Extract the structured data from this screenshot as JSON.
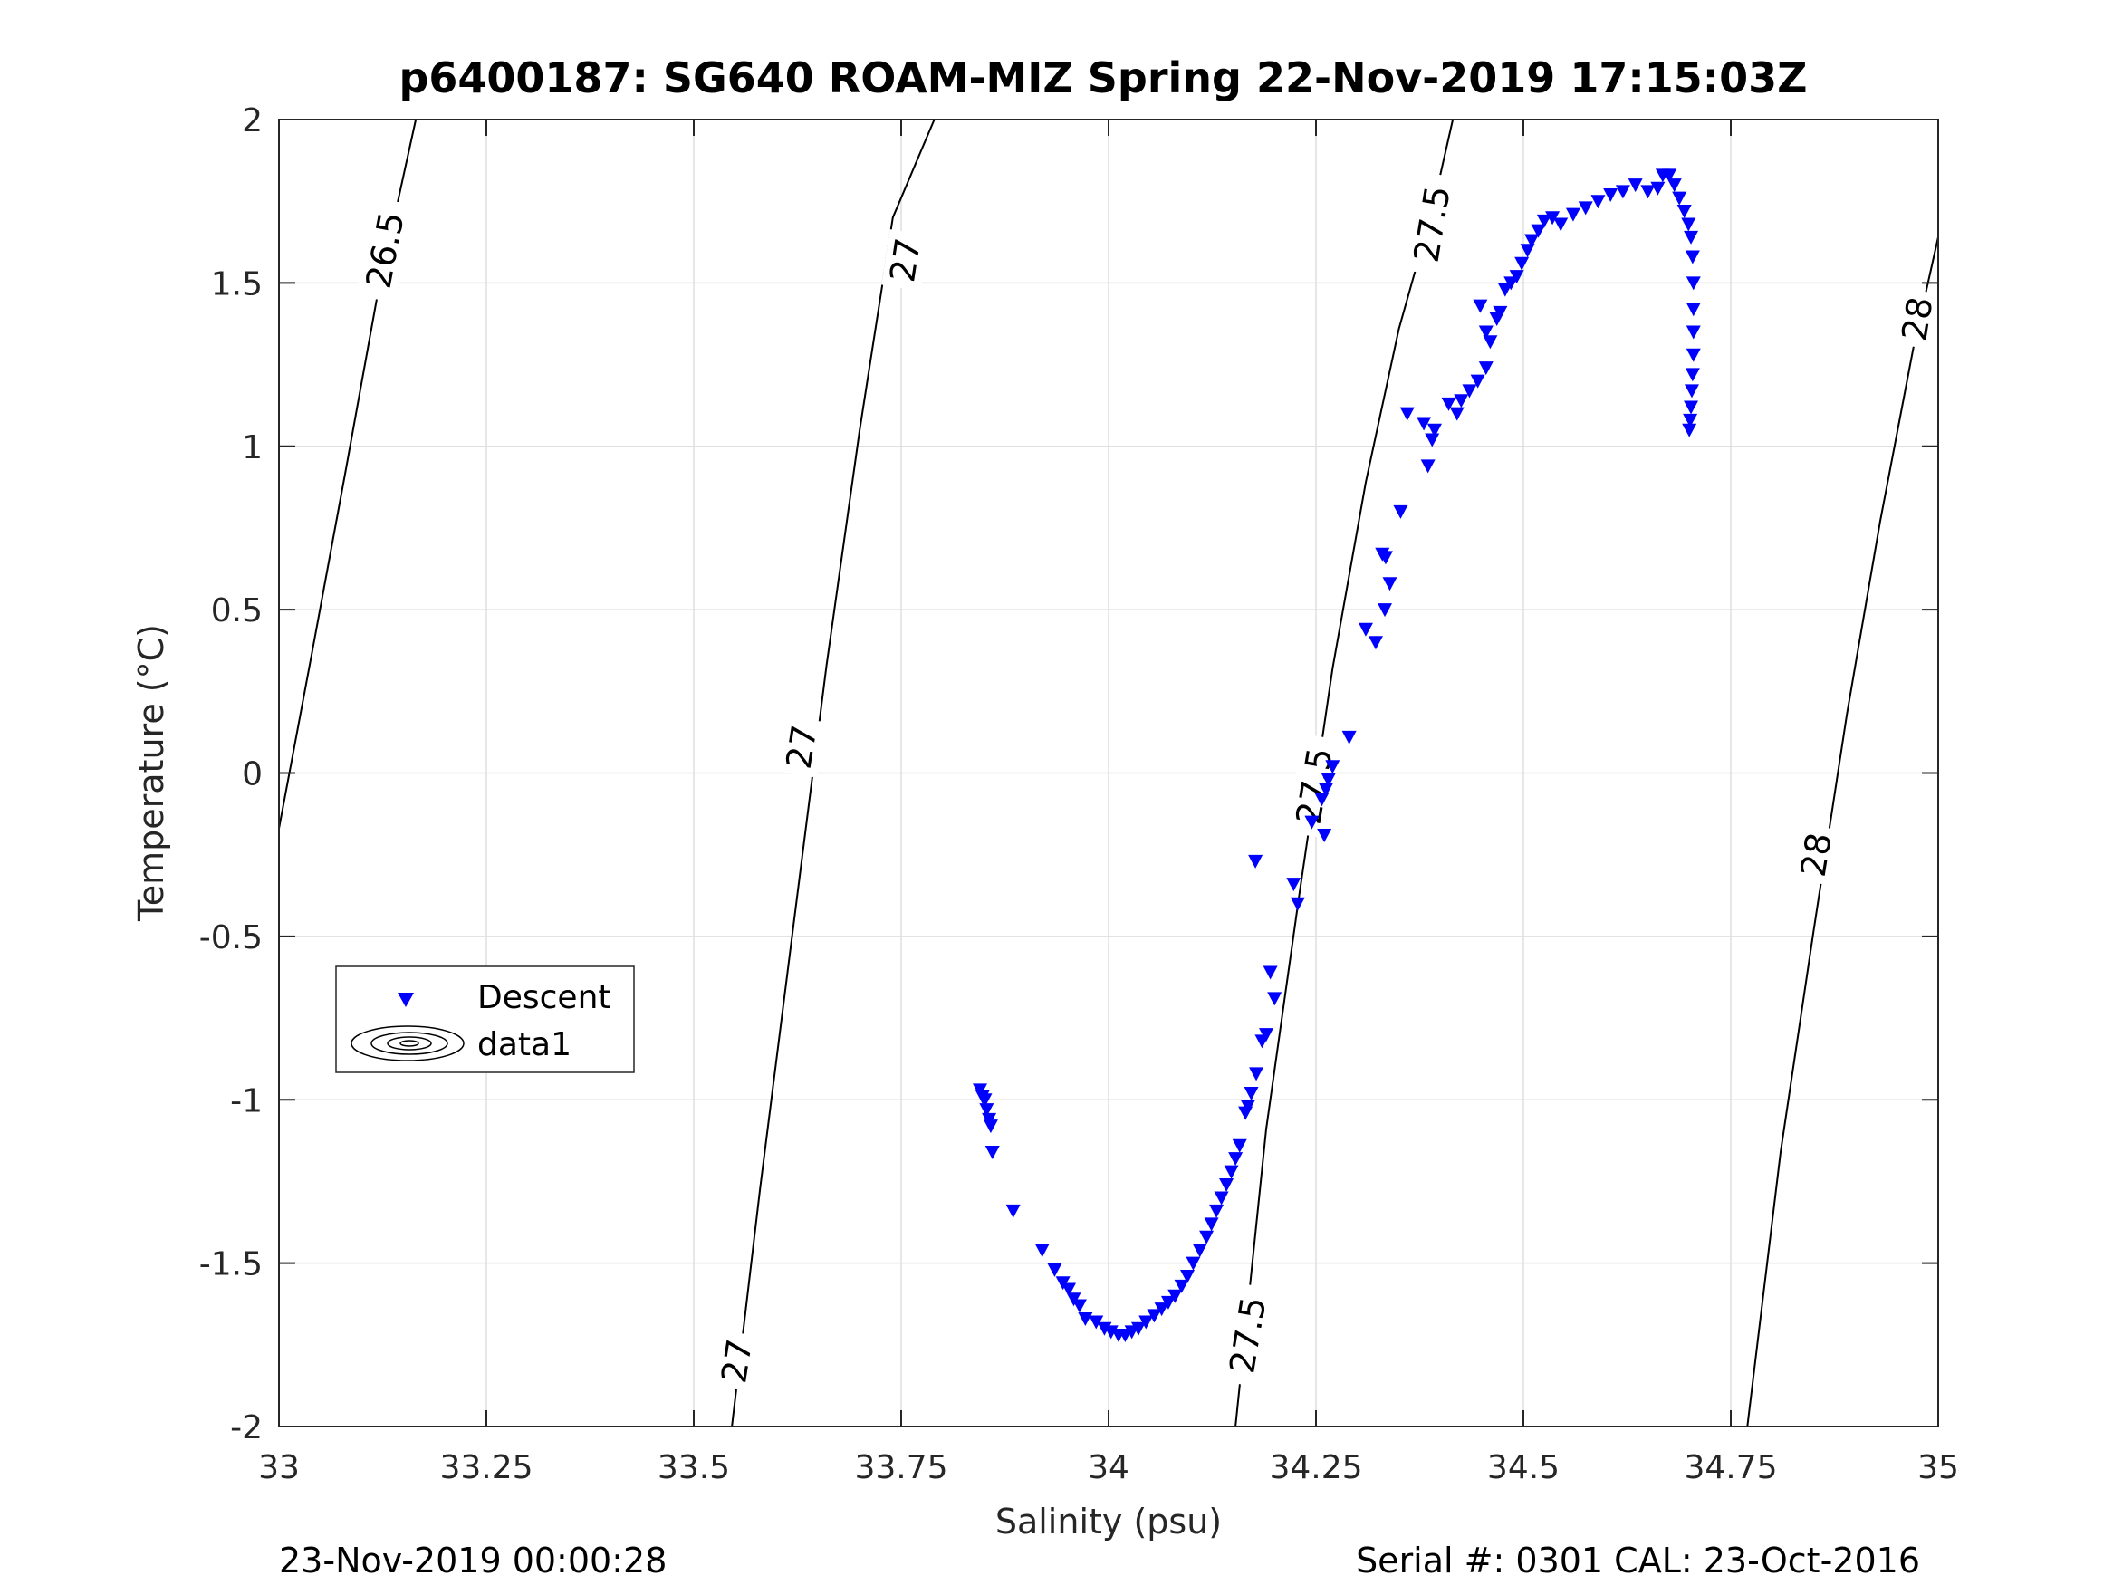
{
  "chart_data": {
    "type": "scatter",
    "title": "p6400187: SG640 ROAM-MIZ Spring 22-Nov-2019 17:15:03Z",
    "xlabel": "Salinity (psu)",
    "ylabel": "Temperature (°C)",
    "xlim": [
      33,
      35
    ],
    "ylim": [
      -2,
      2
    ],
    "xticks": [
      33,
      33.25,
      33.5,
      33.75,
      34,
      34.25,
      34.5,
      34.75,
      35
    ],
    "xtick_labels": [
      "33",
      "33.25",
      "33.5",
      "33.75",
      "34",
      "34.25",
      "34.5",
      "34.75",
      "35"
    ],
    "yticks": [
      -2,
      -1.5,
      -1,
      -0.5,
      0,
      0.5,
      1,
      1.5,
      2
    ],
    "ytick_labels": [
      "-2",
      "-1.5",
      "-1",
      "-0.5",
      "0",
      "0.5",
      "1",
      "1.5",
      "2"
    ],
    "grid": true,
    "legend": {
      "position": "lower-left",
      "entries": [
        {
          "label": "Descent",
          "marker": "triangle-down",
          "color": "#0000ff"
        },
        {
          "label": "data1",
          "marker": "contour",
          "color": "#000000"
        }
      ]
    },
    "series": [
      {
        "name": "Descent",
        "marker": "triangle-down",
        "color": "#0000ff",
        "points": [
          [
            33.845,
            -0.97
          ],
          [
            33.848,
            -0.99
          ],
          [
            33.851,
            -1.0
          ],
          [
            33.853,
            -1.03
          ],
          [
            33.856,
            -1.06
          ],
          [
            33.858,
            -1.08
          ],
          [
            33.86,
            -1.16
          ],
          [
            33.885,
            -1.34
          ],
          [
            33.92,
            -1.46
          ],
          [
            33.935,
            -1.52
          ],
          [
            33.945,
            -1.56
          ],
          [
            33.952,
            -1.58
          ],
          [
            33.958,
            -1.61
          ],
          [
            33.965,
            -1.63
          ],
          [
            33.972,
            -1.67
          ],
          [
            33.985,
            -1.68
          ],
          [
            33.995,
            -1.7
          ],
          [
            34.003,
            -1.71
          ],
          [
            34.012,
            -1.72
          ],
          [
            34.02,
            -1.72
          ],
          [
            34.028,
            -1.71
          ],
          [
            34.036,
            -1.7
          ],
          [
            34.045,
            -1.68
          ],
          [
            34.055,
            -1.66
          ],
          [
            34.064,
            -1.64
          ],
          [
            34.072,
            -1.62
          ],
          [
            34.08,
            -1.6
          ],
          [
            34.088,
            -1.57
          ],
          [
            34.095,
            -1.54
          ],
          [
            34.102,
            -1.5
          ],
          [
            34.11,
            -1.46
          ],
          [
            34.118,
            -1.42
          ],
          [
            34.124,
            -1.38
          ],
          [
            34.13,
            -1.34
          ],
          [
            34.136,
            -1.3
          ],
          [
            34.142,
            -1.26
          ],
          [
            34.148,
            -1.22
          ],
          [
            34.153,
            -1.18
          ],
          [
            34.158,
            -1.14
          ],
          [
            34.165,
            -1.04
          ],
          [
            34.168,
            -1.02
          ],
          [
            34.172,
            -0.98
          ],
          [
            34.178,
            -0.92
          ],
          [
            34.185,
            -0.82
          ],
          [
            34.19,
            -0.8
          ],
          [
            34.2,
            -0.69
          ],
          [
            34.195,
            -0.61
          ],
          [
            34.177,
            -0.27
          ],
          [
            34.223,
            -0.34
          ],
          [
            34.228,
            -0.4
          ],
          [
            34.245,
            -0.15
          ],
          [
            34.257,
            -0.08
          ],
          [
            34.262,
            -0.05
          ],
          [
            34.265,
            -0.02
          ],
          [
            34.27,
            0.02
          ],
          [
            34.26,
            -0.19
          ],
          [
            34.29,
            0.11
          ],
          [
            34.31,
            0.44
          ],
          [
            34.322,
            0.4
          ],
          [
            34.33,
            0.67
          ],
          [
            34.333,
            0.5
          ],
          [
            34.339,
            0.58
          ],
          [
            34.334,
            0.66
          ],
          [
            34.352,
            0.8
          ],
          [
            34.36,
            1.1
          ],
          [
            34.38,
            1.07
          ],
          [
            34.385,
            0.94
          ],
          [
            34.39,
            1.02
          ],
          [
            34.393,
            1.05
          ],
          [
            34.41,
            1.13
          ],
          [
            34.42,
            1.1
          ],
          [
            34.425,
            1.14
          ],
          [
            34.435,
            1.17
          ],
          [
            34.445,
            1.2
          ],
          [
            34.455,
            1.24
          ],
          [
            34.448,
            1.43
          ],
          [
            34.455,
            1.35
          ],
          [
            34.46,
            1.32
          ],
          [
            34.468,
            1.39
          ],
          [
            34.472,
            1.41
          ],
          [
            34.478,
            1.48
          ],
          [
            34.485,
            1.5
          ],
          [
            34.492,
            1.52
          ],
          [
            34.498,
            1.56
          ],
          [
            34.505,
            1.6
          ],
          [
            34.51,
            1.63
          ],
          [
            34.518,
            1.66
          ],
          [
            34.525,
            1.69
          ],
          [
            34.535,
            1.7
          ],
          [
            34.545,
            1.68
          ],
          [
            34.56,
            1.71
          ],
          [
            34.575,
            1.73
          ],
          [
            34.59,
            1.75
          ],
          [
            34.605,
            1.77
          ],
          [
            34.62,
            1.78
          ],
          [
            34.635,
            1.8
          ],
          [
            34.65,
            1.78
          ],
          [
            34.662,
            1.79
          ],
          [
            34.668,
            1.83
          ],
          [
            34.676,
            1.83
          ],
          [
            34.682,
            1.8
          ],
          [
            34.688,
            1.76
          ],
          [
            34.694,
            1.72
          ],
          [
            34.699,
            1.68
          ],
          [
            34.702,
            1.64
          ],
          [
            34.704,
            1.58
          ],
          [
            34.705,
            1.5
          ],
          [
            34.705,
            1.42
          ],
          [
            34.705,
            1.35
          ],
          [
            34.705,
            1.28
          ],
          [
            34.704,
            1.22
          ],
          [
            34.703,
            1.17
          ],
          [
            34.702,
            1.12
          ],
          [
            34.701,
            1.08
          ],
          [
            34.7,
            1.05
          ]
        ]
      }
    ],
    "contours": [
      {
        "label": "26.5",
        "labels_at": [
          [
            33.128,
            1.6
          ]
        ],
        "points": [
          [
            33.0,
            -0.17
          ],
          [
            33.04,
            0.37
          ],
          [
            33.08,
            0.92
          ],
          [
            33.12,
            1.48
          ],
          [
            33.165,
            2.0
          ]
        ]
      },
      {
        "label": "27",
        "labels_at": [
          [
            33.552,
            -1.8
          ],
          [
            33.63,
            0.08
          ],
          [
            33.755,
            1.57
          ]
        ],
        "points": [
          [
            33.546,
            -2.0
          ],
          [
            33.58,
            -1.27
          ],
          [
            33.62,
            -0.47
          ],
          [
            33.66,
            0.33
          ],
          [
            33.7,
            1.05
          ],
          [
            33.74,
            1.7
          ],
          [
            33.79,
            2.0
          ]
        ]
      },
      {
        "label": "27.5",
        "labels_at": [
          [
            34.168,
            -1.72
          ],
          [
            34.248,
            -0.04
          ],
          [
            34.39,
            1.68
          ]
        ],
        "points": [
          [
            34.153,
            -2.0
          ],
          [
            34.19,
            -1.09
          ],
          [
            34.23,
            -0.37
          ],
          [
            34.27,
            0.32
          ],
          [
            34.31,
            0.89
          ],
          [
            34.35,
            1.36
          ],
          [
            34.39,
            1.72
          ],
          [
            34.415,
            2.0
          ]
        ]
      },
      {
        "label": "28",
        "labels_at": [
          [
            34.853,
            -0.25
          ],
          [
            34.975,
            1.39
          ]
        ],
        "points": [
          [
            34.77,
            -2.0
          ],
          [
            34.81,
            -1.16
          ],
          [
            34.85,
            -0.48
          ],
          [
            34.89,
            0.18
          ],
          [
            34.93,
            0.77
          ],
          [
            34.97,
            1.3
          ],
          [
            35.0,
            1.64
          ]
        ]
      }
    ],
    "footer_left": "23-Nov-2019 00:00:28",
    "footer_right": "Serial #: 0301  CAL: 23-Oct-2016"
  }
}
